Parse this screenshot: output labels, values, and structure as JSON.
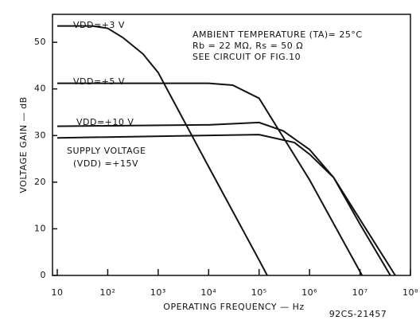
{
  "chart_data": {
    "type": "line",
    "xlabel": "OPERATING FREQUENCY — Hz",
    "ylabel": "VOLTAGE GAIN — dB",
    "annotations": [
      "AMBIENT TEMPERATURE (TA)= 25°C",
      "Rb = 22 MΩ, Rs = 50 Ω",
      "SEE CIRCUIT OF FIG.10",
      "SUPPLY VOLTAGE",
      "92CS-21457"
    ],
    "xscale": "log",
    "xlim": [
      10,
      100000000
    ],
    "xticks": [
      {
        "value": 10,
        "label": "10"
      },
      {
        "value": 100,
        "label": "10²"
      },
      {
        "value": 1000,
        "label": "10³"
      },
      {
        "value": 10000,
        "label": "10⁴"
      },
      {
        "value": 100000,
        "label": "10⁵"
      },
      {
        "value": 1000000,
        "label": "10⁶"
      },
      {
        "value": 10000000,
        "label": "10⁷"
      },
      {
        "value": 100000000,
        "label": "10⁸"
      }
    ],
    "ylim": [
      0,
      56
    ],
    "yticks": [
      0,
      10,
      20,
      30,
      40,
      50
    ],
    "grid": false,
    "series": [
      {
        "name": "VDD=+3 V",
        "color": "#111",
        "x": [
          10,
          50,
          100,
          200,
          500,
          1000,
          10000,
          100000,
          145000
        ],
        "values": [
          53.5,
          53.5,
          53,
          51,
          47.5,
          43.5,
          23.3,
          3.3,
          0
        ]
      },
      {
        "name": "VDD=+5 V",
        "color": "#111",
        "x": [
          10,
          10000,
          30000,
          100000,
          1000000,
          11000000
        ],
        "values": [
          41.2,
          41.2,
          40.8,
          38,
          20.5,
          0
        ]
      },
      {
        "name": "VDD=+10 V",
        "color": "#111",
        "x": [
          10,
          10000,
          100000,
          300000,
          1000000,
          3000000,
          10000000,
          40000000
        ],
        "values": [
          32,
          32.3,
          32.8,
          31,
          27,
          21,
          11,
          0
        ]
      },
      {
        "name": "(VDD) =+15V",
        "color": "#111",
        "x": [
          10,
          100000,
          500000,
          1000000,
          3000000,
          10000000,
          50000000
        ],
        "values": [
          29.5,
          30.2,
          28.5,
          26,
          21,
          12,
          0
        ]
      }
    ]
  }
}
